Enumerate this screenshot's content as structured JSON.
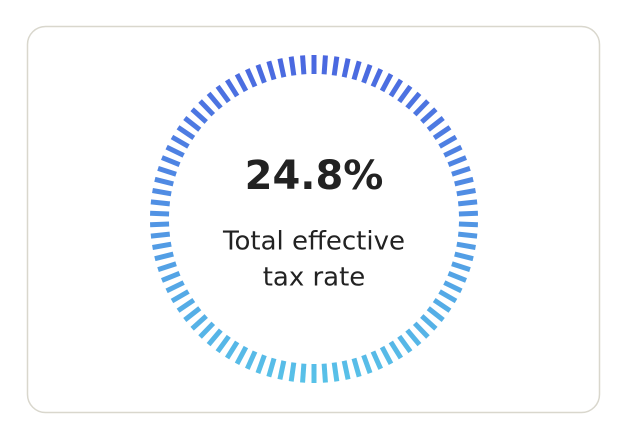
{
  "card": {
    "value_text": "24.8%",
    "label_lines": [
      "Total effective",
      "tax rate"
    ]
  }
}
